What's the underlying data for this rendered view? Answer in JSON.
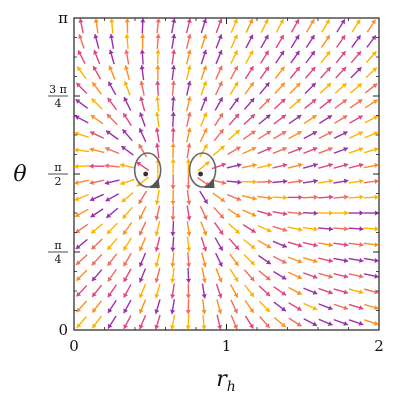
{
  "chart_data": {
    "type": "vector-field",
    "xlabel": "r",
    "xlabel_sub": "h",
    "ylabel": "θ",
    "xlim": [
      0,
      2
    ],
    "ylim": [
      0,
      3.14159
    ],
    "x_ticks": [
      {
        "value": 0,
        "label": "0"
      },
      {
        "value": 1,
        "label": "1"
      },
      {
        "value": 2,
        "label": "2"
      }
    ],
    "y_ticks": [
      {
        "value": 0,
        "label": "0",
        "num": "",
        "den": ""
      },
      {
        "value": 0.7854,
        "label": "",
        "num": "π",
        "den": "4"
      },
      {
        "value": 1.5708,
        "label": "",
        "num": "π",
        "den": "2"
      },
      {
        "value": 2.3562,
        "label": "",
        "num": "3 π",
        "den": "4"
      },
      {
        "value": 3.14159,
        "label": "π",
        "num": "",
        "den": ""
      }
    ],
    "grid": false,
    "critical_points": [
      {
        "r": 0.47,
        "theta": 1.5708,
        "type": "vortex-loop"
      },
      {
        "r": 0.83,
        "theta": 1.5708,
        "type": "vortex-loop"
      }
    ],
    "arrow_colors": [
      "#ffb300",
      "#ff8f1f",
      "#f26b5b",
      "#e0457b",
      "#9b30a8"
    ]
  }
}
